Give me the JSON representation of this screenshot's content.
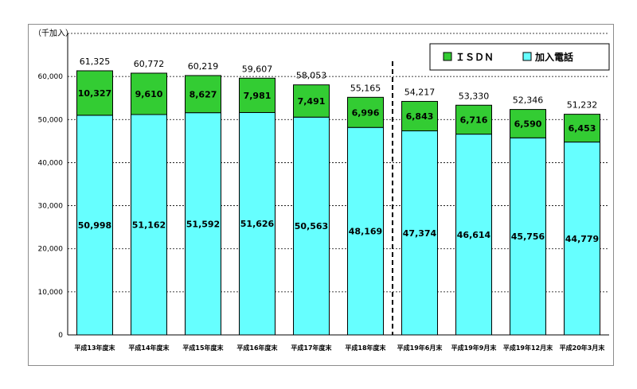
{
  "chart_data": {
    "type": "bar",
    "stacked": true,
    "unit_label": "（千加入）",
    "categories": [
      "平成13年度末",
      "平成14年度末",
      "平成15年度末",
      "平成16年度末",
      "平成17年度末",
      "平成18年度末",
      "平成19年6月末",
      "平成19年9月末",
      "平成19年12月末",
      "平成20年3月末"
    ],
    "series": [
      {
        "name": "加入電話",
        "color": "#66ffff",
        "values": [
          50998,
          51162,
          51592,
          51626,
          50563,
          48169,
          47374,
          46614,
          45756,
          44779
        ],
        "labels": [
          "50,998",
          "51,162",
          "51,592",
          "51,626",
          "50,563",
          "48,169",
          "47,374",
          "46,614",
          "45,756",
          "44,779"
        ]
      },
      {
        "name": "ＩＳＤＮ",
        "color": "#33cc33",
        "values": [
          10327,
          9610,
          8627,
          7981,
          7491,
          6996,
          6843,
          6716,
          6590,
          6453
        ],
        "labels": [
          "10,327",
          "9,610",
          "8,627",
          "7,981",
          "7,491",
          "6,996",
          "6,843",
          "6,716",
          "6,590",
          "6,453"
        ]
      }
    ],
    "totals": [
      "61,325",
      "60,772",
      "60,219",
      "59,607",
      "58,053",
      "55,165",
      "54,217",
      "53,330",
      "52,346",
      "51,232"
    ],
    "yticks": [
      "0",
      "10,000",
      "20,000",
      "30,000",
      "40,000",
      "50,000",
      "60,000"
    ],
    "ylim": [
      0,
      60000
    ],
    "grid": "dashed horizontal",
    "separator_after_index": 5,
    "legend_position": "top-right"
  }
}
